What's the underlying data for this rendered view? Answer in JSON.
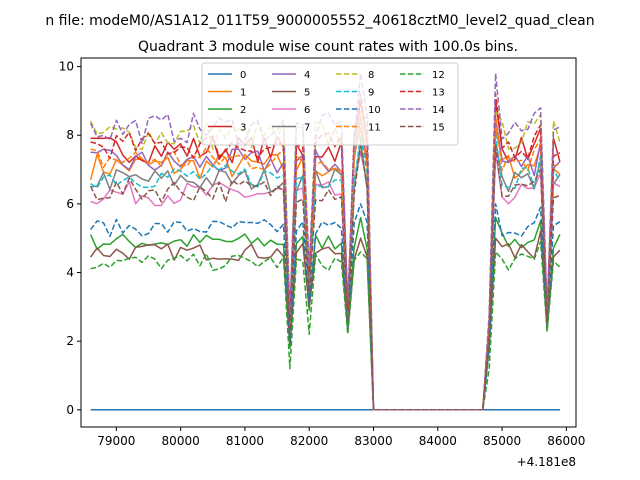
{
  "figure": {
    "suptitle": "n file: modeM0/AS1A12_011T59_9000005552_40618cztM0_level2_quad_clean",
    "title": "Quadrant 3 module wise count rates with 100.0s bins.",
    "x_offset_label": "+4.181e8"
  },
  "chart_data": {
    "type": "line",
    "title": "Quadrant 3 module wise count rates with 100.0s bins.",
    "xlabel": "",
    "ylabel": "",
    "x_offset": 418100000,
    "xlim": [
      78450,
      86150
    ],
    "ylim": [
      -0.5,
      10.25
    ],
    "xticks": [
      79000,
      80000,
      81000,
      82000,
      83000,
      84000,
      85000,
      86000
    ],
    "xtick_labels": [
      "79000",
      "80000",
      "81000",
      "82000",
      "83000",
      "84000",
      "85000",
      "86000"
    ],
    "yticks": [
      0,
      2,
      4,
      6,
      8,
      10
    ],
    "ytick_labels": [
      "0",
      "2",
      "4",
      "6",
      "8",
      "10"
    ],
    "grid": false,
    "legend_placement": "upper center",
    "legend_columns": 4,
    "gaps": [
      [
        83000,
        84700
      ]
    ],
    "segments": [
      [
        78600,
        79000,
        79500,
        80000,
        80500,
        81000,
        81400,
        81550
      ],
      [
        81550,
        81700,
        81850
      ],
      [
        81850,
        82000,
        82100,
        82400,
        82550
      ],
      [
        82550,
        82700,
        82850
      ],
      [
        82850,
        83000
      ],
      [
        84700,
        84850
      ],
      [
        84850,
        85000,
        85400,
        85550
      ],
      [
        85550,
        85700,
        85850,
        85900
      ]
    ],
    "series": [
      {
        "name": "0",
        "style": "solid",
        "color": "#1f77b4",
        "level": 0,
        "noise": 0,
        "lows": [
          0,
          0,
          0,
          0,
          0
        ]
      },
      {
        "name": "1",
        "style": "solid",
        "color": "#ff7f0e",
        "level": 7.1,
        "noise": 0.4,
        "lows": [
          2.5,
          3.8,
          2.7,
          8.2,
          2.6
        ]
      },
      {
        "name": "2",
        "style": "solid",
        "color": "#2ca02c",
        "level": 4.9,
        "noise": 0.25,
        "lows": [
          1.8,
          2.9,
          2.4,
          5.6,
          2.3
        ]
      },
      {
        "name": "3",
        "style": "solid",
        "color": "#d62728",
        "level": 7.6,
        "noise": 0.4,
        "lows": [
          2.6,
          3.9,
          2.9,
          9.0,
          2.7
        ]
      },
      {
        "name": "4",
        "style": "solid",
        "color": "#9467bd",
        "level": 7.2,
        "noise": 0.4,
        "lows": [
          2.4,
          3.7,
          2.7,
          8.5,
          2.5
        ]
      },
      {
        "name": "5",
        "style": "solid",
        "color": "#8c564b",
        "level": 4.6,
        "noise": 0.25,
        "lows": [
          1.9,
          3.0,
          2.3,
          5.0,
          2.4
        ]
      },
      {
        "name": "6",
        "style": "solid",
        "color": "#e377c2",
        "level": 6.3,
        "noise": 0.35,
        "lows": [
          2.2,
          3.4,
          2.6,
          7.5,
          2.5
        ]
      },
      {
        "name": "7",
        "style": "solid",
        "color": "#7f7f7f",
        "level": 6.7,
        "noise": 0.35,
        "lows": [
          2.3,
          3.5,
          2.6,
          7.8,
          2.6
        ]
      },
      {
        "name": "8",
        "style": "dashed",
        "color": "#bcbd22",
        "level": 8.0,
        "noise": 0.45,
        "lows": [
          2.7,
          4.0,
          3.0,
          8.7,
          2.8
        ]
      },
      {
        "name": "9",
        "style": "dashed",
        "color": "#17becf",
        "level": 6.8,
        "noise": 0.35,
        "lows": [
          2.3,
          3.6,
          2.7,
          8.0,
          2.6
        ]
      },
      {
        "name": "10",
        "style": "dashed",
        "color": "#1f77b4",
        "level": 5.3,
        "noise": 0.25,
        "lows": [
          2.0,
          3.1,
          2.4,
          6.0,
          2.4
        ]
      },
      {
        "name": "11",
        "style": "dashed",
        "color": "#ff7f0e",
        "level": 7.3,
        "noise": 0.4,
        "lows": [
          2.5,
          3.9,
          2.8,
          8.6,
          2.6
        ]
      },
      {
        "name": "12",
        "style": "dashed",
        "color": "#2ca02c",
        "level": 4.3,
        "noise": 0.25,
        "lows": [
          1.2,
          2.2,
          2.2,
          4.6,
          2.3
        ]
      },
      {
        "name": "13",
        "style": "dashed",
        "color": "#d62728",
        "level": 7.7,
        "noise": 0.4,
        "lows": [
          2.6,
          4.0,
          2.9,
          9.2,
          2.7
        ]
      },
      {
        "name": "14",
        "style": "dashed",
        "color": "#9467bd",
        "level": 8.2,
        "noise": 0.45,
        "lows": [
          2.8,
          4.2,
          3.1,
          9.8,
          2.9
        ]
      },
      {
        "name": "15",
        "style": "dashed",
        "color": "#8c564b",
        "level": 6.4,
        "noise": 0.35,
        "lows": [
          2.2,
          3.4,
          2.6,
          7.7,
          2.5
        ]
      }
    ]
  }
}
